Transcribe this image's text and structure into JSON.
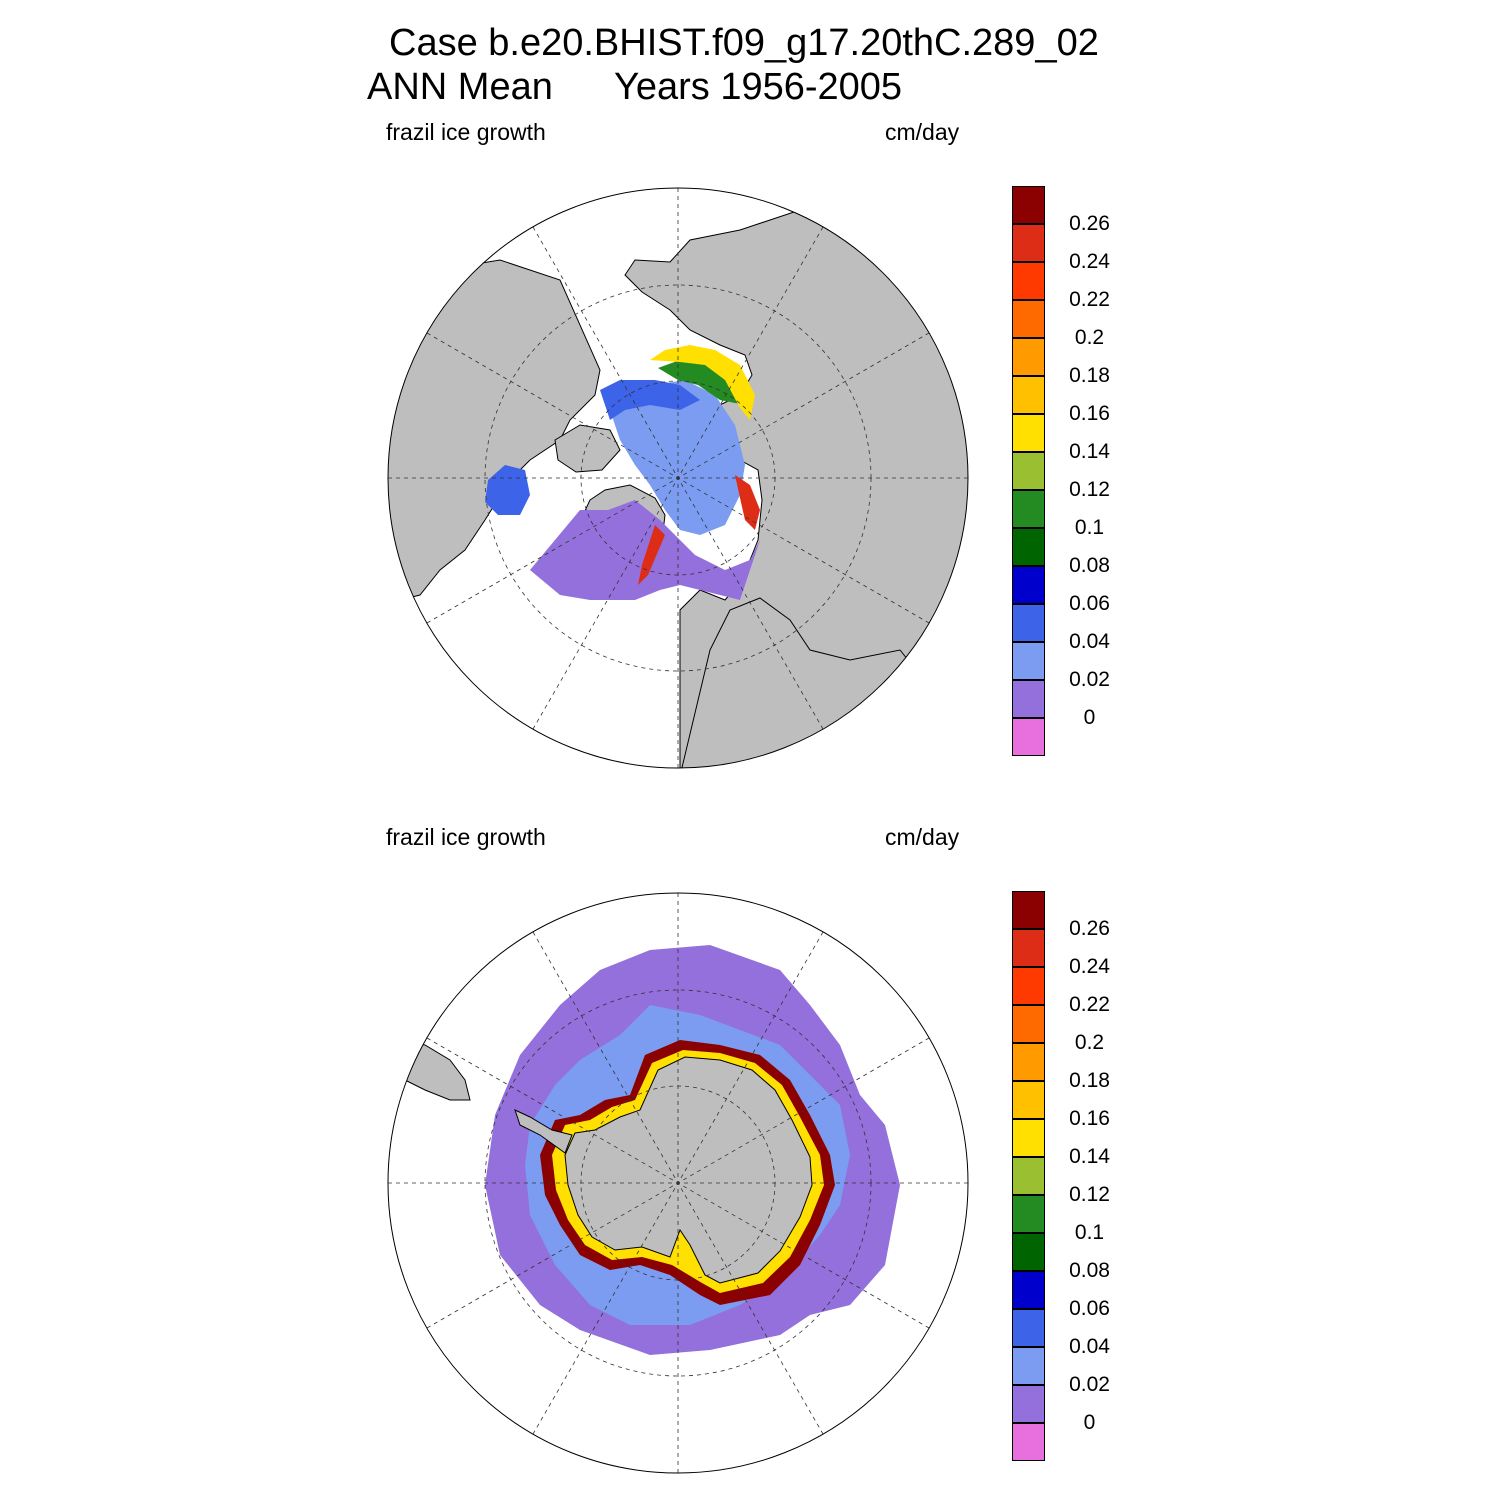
{
  "figure": {
    "title_line1": "Case b.e20.BHIST.f09_g17.20thC.289_02",
    "title_line2_left": "ANN Mean",
    "title_line2_right": "Years 1956-2005"
  },
  "panels": [
    {
      "hemisphere": "north",
      "left_label": "frazil ice growth",
      "right_label": "cm/day"
    },
    {
      "hemisphere": "south",
      "left_label": "frazil ice growth",
      "right_label": "cm/day"
    }
  ],
  "colorbar": {
    "colors": [
      "#8b0000",
      "#de2d17",
      "#ff3a00",
      "#ff6a00",
      "#ff9a00",
      "#ffc000",
      "#ffe000",
      "#9abf30",
      "#238b22",
      "#006400",
      "#0000cd",
      "#3d63e8",
      "#7b9cf0",
      "#9370db",
      "#e86fde"
    ],
    "labels": [
      "0.26",
      "0.24",
      "0.22",
      "0.2",
      "0.18",
      "0.16",
      "0.14",
      "0.12",
      "0.1",
      "0.08",
      "0.06",
      "0.04",
      "0.02",
      "0"
    ]
  },
  "map_colors": {
    "land": "#bebebe",
    "ocean_unfilled": "#ffffff"
  }
}
